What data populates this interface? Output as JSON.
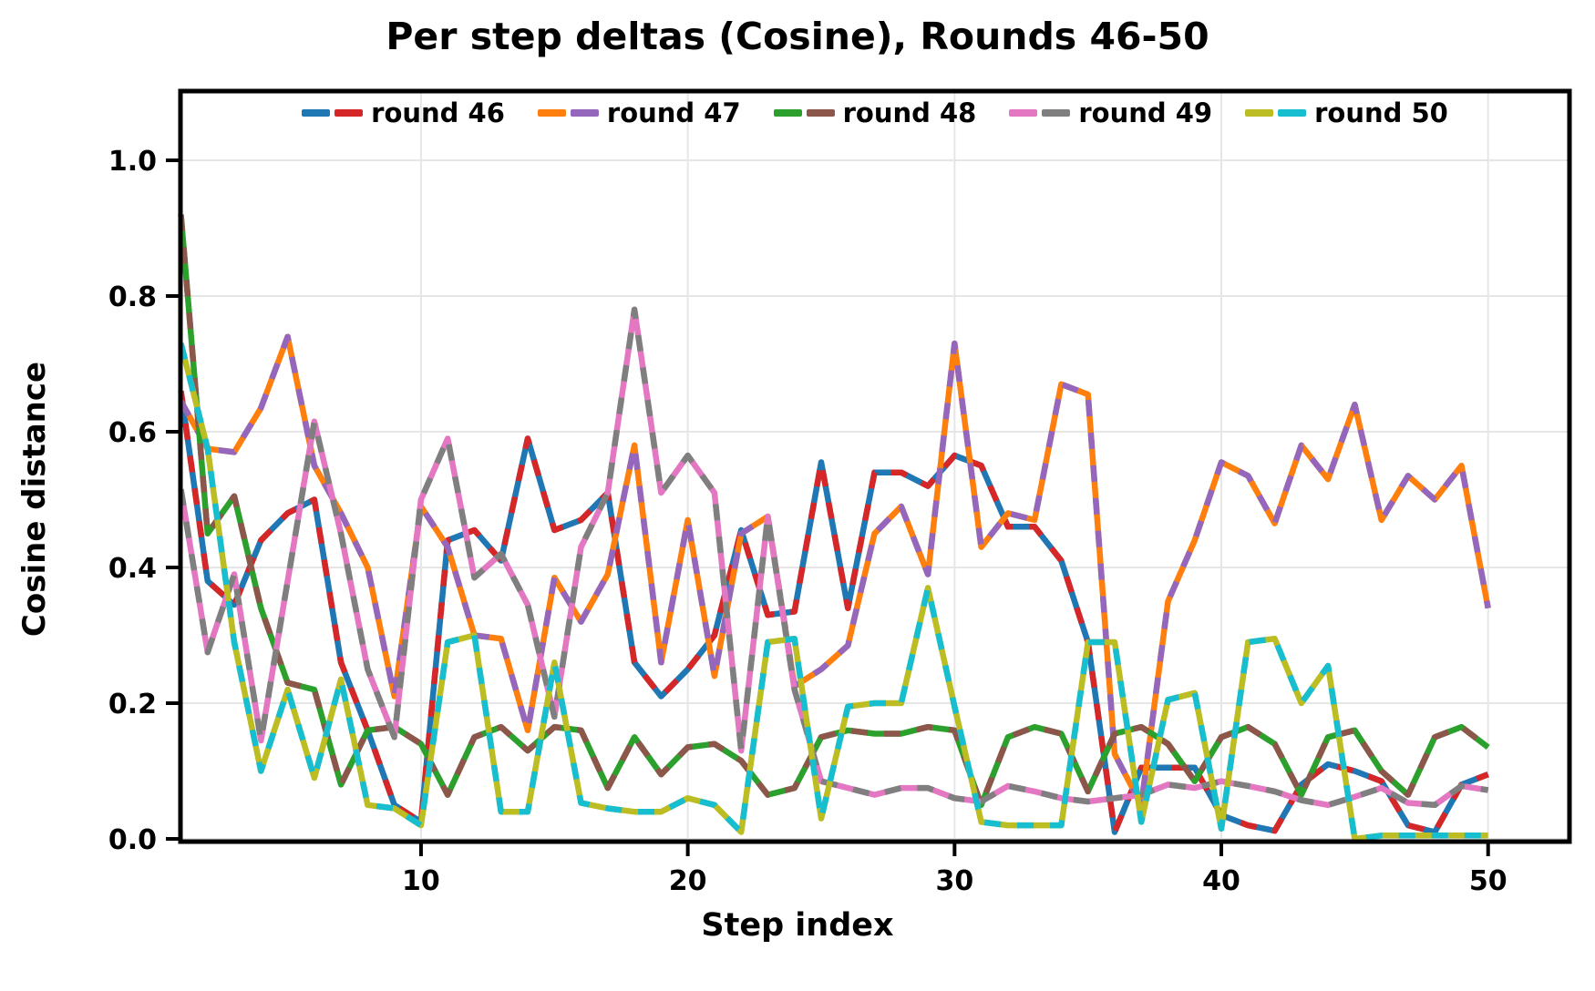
{
  "figure": {
    "title": "Per step deltas (Cosine), Rounds 46-50",
    "xlabel": "Step index",
    "ylabel": "Cosine distance"
  },
  "chart_data": {
    "type": "line",
    "title": "Per step deltas (Cosine), Rounds 46-50",
    "xlabel": "Step index",
    "ylabel": "Cosine distance",
    "grid": true,
    "legend_position": "top-center-inside",
    "background": "#ffffff",
    "grid_color": "#e6e6e6",
    "spine_color": "#000000",
    "xlim": [
      1,
      53
    ],
    "ylim": [
      0,
      1.1
    ],
    "xticks": {
      "values": [
        10,
        20,
        30,
        40,
        50
      ],
      "labels": [
        "10",
        "20",
        "30",
        "40",
        "50"
      ]
    },
    "yticks": {
      "values": [
        0.0,
        0.2,
        0.4,
        0.6,
        0.8,
        1.0
      ],
      "labels": [
        "0.0",
        "0.2",
        "0.4",
        "0.6",
        "0.8",
        "1.0"
      ]
    },
    "x": [
      1,
      2,
      3,
      4,
      5,
      6,
      7,
      8,
      9,
      10,
      11,
      12,
      13,
      14,
      15,
      16,
      17,
      18,
      19,
      20,
      21,
      22,
      23,
      24,
      25,
      26,
      27,
      28,
      29,
      30,
      31,
      32,
      33,
      34,
      35,
      36,
      37,
      38,
      39,
      40,
      41,
      42,
      43,
      44,
      45,
      46,
      47,
      48,
      49,
      50
    ],
    "series": [
      {
        "name": "round 46",
        "colors": [
          "#1f77b4",
          "#d62728"
        ],
        "values": [
          0.66,
          0.38,
          0.345,
          0.44,
          0.48,
          0.5,
          0.26,
          0.16,
          0.05,
          0.025,
          0.44,
          0.455,
          0.41,
          0.59,
          0.455,
          0.47,
          0.51,
          0.26,
          0.21,
          0.25,
          0.3,
          0.455,
          0.33,
          0.335,
          0.555,
          0.34,
          0.54,
          0.54,
          0.52,
          0.565,
          0.55,
          0.46,
          0.46,
          0.41,
          0.29,
          0.01,
          0.105,
          0.105,
          0.105,
          0.035,
          0.02,
          0.012,
          0.08,
          0.11,
          0.1,
          0.085,
          0.02,
          0.01,
          0.08,
          0.095
        ]
      },
      {
        "name": "round 47",
        "colors": [
          "#ff7f0e",
          "#9467bd"
        ],
        "values": [
          0.645,
          0.575,
          0.57,
          0.635,
          0.74,
          0.55,
          0.48,
          0.4,
          0.21,
          0.49,
          0.43,
          0.3,
          0.295,
          0.16,
          0.385,
          0.32,
          0.39,
          0.58,
          0.26,
          0.47,
          0.24,
          0.45,
          0.475,
          0.225,
          0.25,
          0.285,
          0.45,
          0.49,
          0.39,
          0.73,
          0.43,
          0.48,
          0.47,
          0.67,
          0.655,
          0.125,
          0.05,
          0.35,
          0.44,
          0.555,
          0.535,
          0.465,
          0.58,
          0.53,
          0.64,
          0.47,
          0.535,
          0.5,
          0.55,
          0.34
        ]
      },
      {
        "name": "round 48",
        "colors": [
          "#2ca02c",
          "#8c564b"
        ],
        "values": [
          0.92,
          0.45,
          0.505,
          0.34,
          0.23,
          0.22,
          0.08,
          0.16,
          0.165,
          0.14,
          0.065,
          0.15,
          0.165,
          0.13,
          0.165,
          0.16,
          0.075,
          0.15,
          0.095,
          0.135,
          0.14,
          0.115,
          0.065,
          0.075,
          0.15,
          0.16,
          0.155,
          0.155,
          0.165,
          0.16,
          0.05,
          0.15,
          0.165,
          0.155,
          0.07,
          0.155,
          0.165,
          0.14,
          0.085,
          0.15,
          0.165,
          0.14,
          0.065,
          0.15,
          0.16,
          0.1,
          0.065,
          0.15,
          0.165,
          0.135
        ]
      },
      {
        "name": "round 49",
        "colors": [
          "#e377c2",
          "#7f7f7f"
        ],
        "values": [
          0.515,
          0.275,
          0.39,
          0.145,
          0.38,
          0.615,
          0.45,
          0.25,
          0.15,
          0.5,
          0.59,
          0.385,
          0.42,
          0.345,
          0.18,
          0.43,
          0.51,
          0.78,
          0.51,
          0.565,
          0.51,
          0.13,
          0.475,
          0.22,
          0.085,
          0.075,
          0.065,
          0.075,
          0.075,
          0.06,
          0.055,
          0.078,
          0.07,
          0.06,
          0.055,
          0.06,
          0.065,
          0.08,
          0.075,
          0.085,
          0.078,
          0.07,
          0.057,
          0.05,
          0.062,
          0.075,
          0.053,
          0.05,
          0.078,
          0.072
        ]
      },
      {
        "name": "round 50",
        "colors": [
          "#bcbd22",
          "#17becf"
        ],
        "values": [
          0.73,
          0.575,
          0.29,
          0.1,
          0.22,
          0.09,
          0.235,
          0.05,
          0.045,
          0.02,
          0.29,
          0.3,
          0.04,
          0.04,
          0.26,
          0.053,
          0.045,
          0.04,
          0.04,
          0.06,
          0.05,
          0.01,
          0.29,
          0.295,
          0.03,
          0.195,
          0.2,
          0.2,
          0.37,
          0.195,
          0.025,
          0.02,
          0.02,
          0.02,
          0.29,
          0.29,
          0.025,
          0.205,
          0.215,
          0.015,
          0.29,
          0.295,
          0.2,
          0.255,
          0.0,
          0.005,
          0.005,
          0.005,
          0.005,
          0.005
        ]
      }
    ]
  }
}
